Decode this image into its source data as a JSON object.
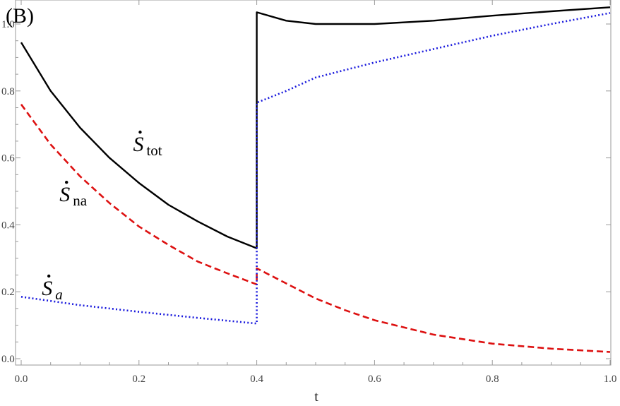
{
  "chart_data": {
    "type": "line",
    "panel_label": "(B)",
    "xlabel": "t",
    "ylabel": "",
    "xlim": [
      0,
      1
    ],
    "ylim": [
      -0.02,
      1.07
    ],
    "x_ticks": [
      0.0,
      0.2,
      0.4,
      0.6,
      0.8,
      1.0
    ],
    "x_tick_labels": [
      "0.0",
      "0.2",
      "0.4",
      "0.6",
      "0.8",
      "1.0"
    ],
    "y_ticks": [
      0.0,
      0.2,
      0.4,
      0.6,
      0.8,
      1.0
    ],
    "y_tick_labels": [
      "0.0",
      "0.2",
      "0.4",
      "0.6",
      "0.8",
      "1.0"
    ],
    "grid": false,
    "series": [
      {
        "key": "tot",
        "color": "#000000",
        "style": "solid",
        "points": [
          [
            0.0,
            0.945
          ],
          [
            0.05,
            0.8
          ],
          [
            0.1,
            0.69
          ],
          [
            0.15,
            0.6
          ],
          [
            0.2,
            0.525
          ],
          [
            0.25,
            0.46
          ],
          [
            0.3,
            0.41
          ],
          [
            0.35,
            0.365
          ],
          [
            0.4,
            0.33
          ],
          [
            0.4,
            1.035
          ],
          [
            0.45,
            1.01
          ],
          [
            0.5,
            1.0
          ],
          [
            0.55,
            1.0
          ],
          [
            0.6,
            1.0
          ],
          [
            0.7,
            1.01
          ],
          [
            0.8,
            1.025
          ],
          [
            0.9,
            1.038
          ],
          [
            1.0,
            1.05
          ]
        ]
      },
      {
        "key": "na",
        "color": "#dd1111",
        "style": "dashed",
        "points": [
          [
            0.0,
            0.76
          ],
          [
            0.05,
            0.64
          ],
          [
            0.1,
            0.545
          ],
          [
            0.15,
            0.465
          ],
          [
            0.2,
            0.395
          ],
          [
            0.25,
            0.34
          ],
          [
            0.3,
            0.29
          ],
          [
            0.35,
            0.255
          ],
          [
            0.4,
            0.222
          ],
          [
            0.4,
            0.27
          ],
          [
            0.45,
            0.225
          ],
          [
            0.5,
            0.18
          ],
          [
            0.55,
            0.145
          ],
          [
            0.6,
            0.115
          ],
          [
            0.7,
            0.072
          ],
          [
            0.8,
            0.045
          ],
          [
            0.9,
            0.03
          ],
          [
            1.0,
            0.02
          ]
        ]
      },
      {
        "key": "a",
        "color": "#1a1add",
        "style": "dotted",
        "points": [
          [
            0.0,
            0.185
          ],
          [
            0.1,
            0.16
          ],
          [
            0.2,
            0.14
          ],
          [
            0.3,
            0.122
          ],
          [
            0.4,
            0.105
          ],
          [
            0.4,
            0.765
          ],
          [
            0.45,
            0.8
          ],
          [
            0.5,
            0.84
          ],
          [
            0.6,
            0.885
          ],
          [
            0.7,
            0.925
          ],
          [
            0.8,
            0.965
          ],
          [
            0.9,
            1.0
          ],
          [
            1.0,
            1.033
          ]
        ]
      }
    ],
    "annotations": [
      {
        "key": "tot",
        "main": "S",
        "sub": "tot",
        "sub_italic": false,
        "x": 0.19,
        "y": 0.62
      },
      {
        "key": "na",
        "main": "S",
        "sub": "na",
        "sub_italic": false,
        "x": 0.065,
        "y": 0.47
      },
      {
        "key": "a",
        "main": "S",
        "sub": "a",
        "sub_italic": true,
        "x": 0.035,
        "y": 0.19
      }
    ]
  }
}
